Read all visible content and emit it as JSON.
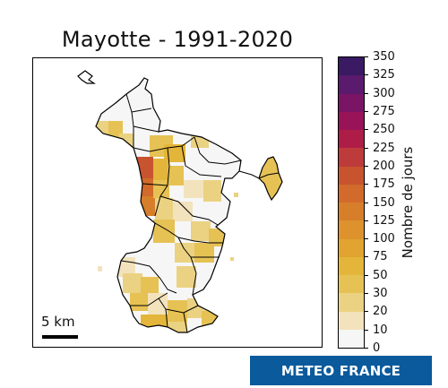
{
  "title": "Mayotte - 1991-2020",
  "colorbar": {
    "label": "Nombre de jours",
    "ticks": [
      "350",
      "325",
      "300",
      "275",
      "250",
      "225",
      "200",
      "175",
      "150",
      "125",
      "100",
      "75",
      "50",
      "30",
      "20",
      "10",
      "0"
    ],
    "colors": [
      "#3a1a63",
      "#5a1a6e",
      "#7a1566",
      "#981358",
      "#ad1d48",
      "#bd3b3a",
      "#c8532f",
      "#d16a2a",
      "#d77e2a",
      "#dd922d",
      "#e1a430",
      "#e3b53a",
      "#e6c254",
      "#ebd282",
      "#f2e3bd",
      "#f6f6f6"
    ]
  },
  "scale_bar": {
    "label": "5 km"
  },
  "logo": {
    "text": "METEO FRANCE",
    "color": "#0a5a9c"
  },
  "map_classes": {
    "none": "#f6f6f6",
    "c10_20": "#f2e3bd",
    "c20_30": "#ebd282",
    "c30_50": "#e6c254",
    "c50_75": "#e3b53a",
    "c125_150": "#d77e2a",
    "c150_175": "#d16a2a",
    "c175_200": "#c8532f"
  }
}
